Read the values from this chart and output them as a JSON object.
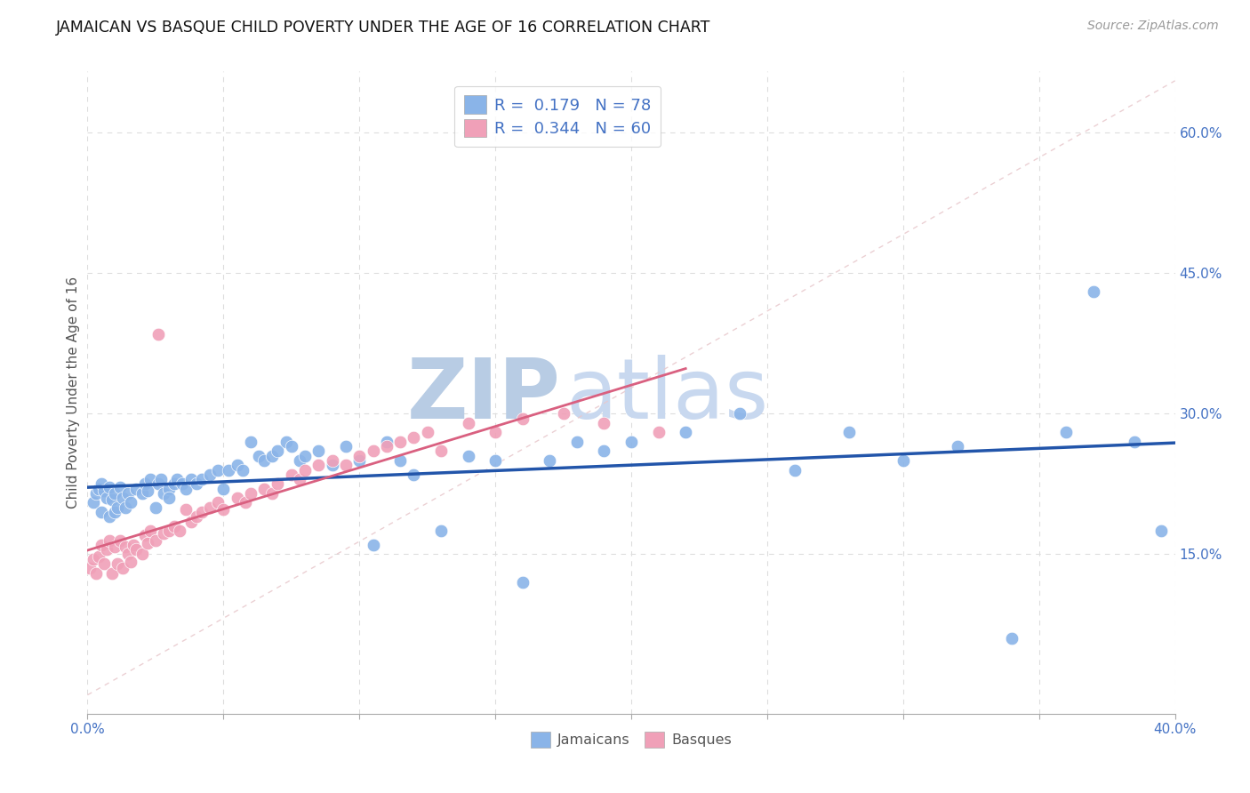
{
  "title": "JAMAICAN VS BASQUE CHILD POVERTY UNDER THE AGE OF 16 CORRELATION CHART",
  "source": "Source: ZipAtlas.com",
  "ylabel": "Child Poverty Under the Age of 16",
  "ytick_labels": [
    "15.0%",
    "30.0%",
    "45.0%",
    "60.0%"
  ],
  "ytick_values": [
    0.15,
    0.3,
    0.45,
    0.6
  ],
  "xlim": [
    0.0,
    0.4
  ],
  "ylim": [
    -0.02,
    0.665
  ],
  "legend_r_jamaican": "0.179",
  "legend_n_jamaican": "78",
  "legend_r_basque": "0.344",
  "legend_n_basque": "60",
  "jamaican_color": "#8ab4e8",
  "basque_color": "#f0a0b8",
  "jamaican_line_color": "#2255aa",
  "basque_line_color": "#d96080",
  "diagonal_line_color": "#e8c8cc",
  "watermark_color": "#c8d8ef",
  "background_color": "#ffffff",
  "grid_color": "#dddddd",
  "jamaican_scatter_x": [
    0.002,
    0.003,
    0.004,
    0.005,
    0.005,
    0.006,
    0.007,
    0.008,
    0.008,
    0.009,
    0.01,
    0.01,
    0.011,
    0.012,
    0.013,
    0.014,
    0.015,
    0.016,
    0.018,
    0.02,
    0.021,
    0.022,
    0.023,
    0.025,
    0.026,
    0.027,
    0.028,
    0.03,
    0.03,
    0.032,
    0.033,
    0.035,
    0.036,
    0.038,
    0.04,
    0.042,
    0.045,
    0.048,
    0.05,
    0.052,
    0.055,
    0.057,
    0.06,
    0.063,
    0.065,
    0.068,
    0.07,
    0.073,
    0.075,
    0.078,
    0.08,
    0.085,
    0.09,
    0.095,
    0.1,
    0.105,
    0.11,
    0.115,
    0.12,
    0.13,
    0.14,
    0.15,
    0.16,
    0.17,
    0.18,
    0.19,
    0.2,
    0.22,
    0.24,
    0.26,
    0.28,
    0.3,
    0.32,
    0.34,
    0.36,
    0.37,
    0.385,
    0.395
  ],
  "jamaican_scatter_y": [
    0.205,
    0.215,
    0.22,
    0.195,
    0.225,
    0.218,
    0.21,
    0.222,
    0.19,
    0.208,
    0.195,
    0.215,
    0.2,
    0.222,
    0.21,
    0.2,
    0.215,
    0.205,
    0.22,
    0.215,
    0.225,
    0.218,
    0.23,
    0.2,
    0.225,
    0.23,
    0.215,
    0.22,
    0.21,
    0.225,
    0.23,
    0.225,
    0.22,
    0.23,
    0.225,
    0.23,
    0.235,
    0.24,
    0.22,
    0.24,
    0.245,
    0.24,
    0.27,
    0.255,
    0.25,
    0.255,
    0.26,
    0.27,
    0.265,
    0.25,
    0.255,
    0.26,
    0.245,
    0.265,
    0.25,
    0.16,
    0.27,
    0.25,
    0.235,
    0.175,
    0.255,
    0.25,
    0.12,
    0.25,
    0.27,
    0.26,
    0.27,
    0.28,
    0.3,
    0.24,
    0.28,
    0.25,
    0.265,
    0.06,
    0.28,
    0.43,
    0.27,
    0.175
  ],
  "basque_scatter_x": [
    0.001,
    0.002,
    0.003,
    0.004,
    0.005,
    0.006,
    0.007,
    0.008,
    0.009,
    0.01,
    0.011,
    0.012,
    0.013,
    0.014,
    0.015,
    0.016,
    0.017,
    0.018,
    0.02,
    0.021,
    0.022,
    0.023,
    0.025,
    0.026,
    0.028,
    0.03,
    0.032,
    0.034,
    0.036,
    0.038,
    0.04,
    0.042,
    0.045,
    0.048,
    0.05,
    0.055,
    0.058,
    0.06,
    0.065,
    0.068,
    0.07,
    0.075,
    0.078,
    0.08,
    0.085,
    0.09,
    0.095,
    0.1,
    0.105,
    0.11,
    0.115,
    0.12,
    0.125,
    0.13,
    0.14,
    0.15,
    0.16,
    0.175,
    0.19,
    0.21
  ],
  "basque_scatter_y": [
    0.135,
    0.145,
    0.13,
    0.148,
    0.16,
    0.14,
    0.155,
    0.165,
    0.13,
    0.158,
    0.14,
    0.165,
    0.135,
    0.158,
    0.15,
    0.142,
    0.16,
    0.155,
    0.15,
    0.17,
    0.162,
    0.175,
    0.165,
    0.385,
    0.172,
    0.175,
    0.18,
    0.175,
    0.198,
    0.185,
    0.19,
    0.195,
    0.2,
    0.205,
    0.198,
    0.21,
    0.205,
    0.215,
    0.22,
    0.215,
    0.225,
    0.235,
    0.23,
    0.24,
    0.245,
    0.25,
    0.245,
    0.255,
    0.26,
    0.265,
    0.27,
    0.275,
    0.28,
    0.26,
    0.29,
    0.28,
    0.295,
    0.3,
    0.29,
    0.28
  ]
}
